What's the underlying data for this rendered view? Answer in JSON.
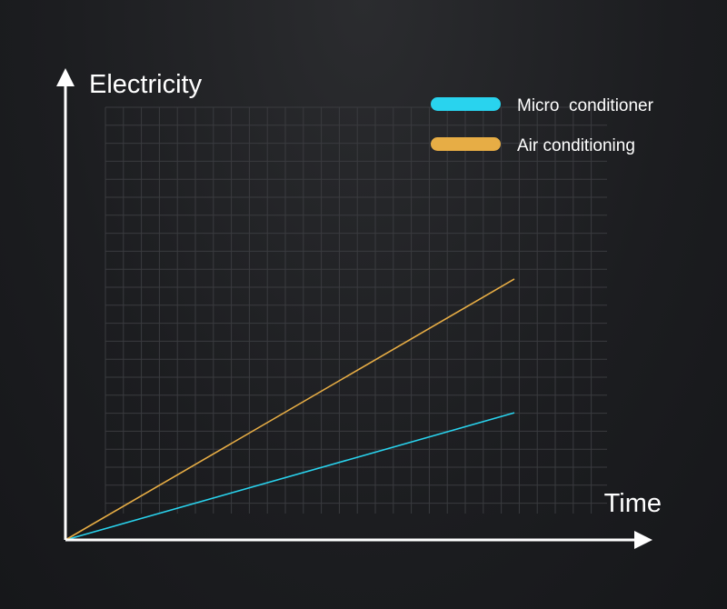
{
  "chart_data": {
    "type": "line",
    "xlabel": "Time",
    "ylabel": "Electricity",
    "xlim": [
      0,
      10
    ],
    "ylim": [
      0,
      10
    ],
    "grid": true,
    "legend_position": "top-right",
    "series": [
      {
        "name": "Micro  conditioner",
        "color": "#29d3ee",
        "x": [
          0,
          9.5
        ],
        "y": [
          0,
          3.8
        ]
      },
      {
        "name": "Air conditioning",
        "color": "#e7ad45",
        "x": [
          0,
          9.5
        ],
        "y": [
          0,
          7.8
        ]
      }
    ]
  },
  "colors": {
    "axis": "#ffffff",
    "grid": "#3a3b3f",
    "background": "#1e1f22"
  }
}
